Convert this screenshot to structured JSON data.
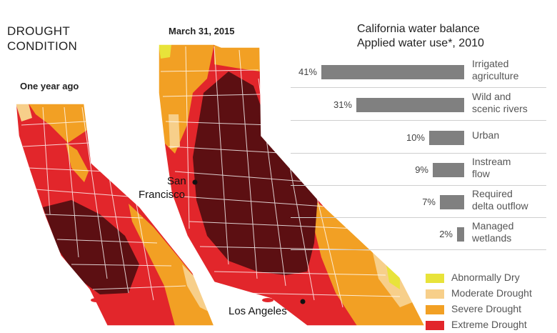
{
  "titles": {
    "drought_line1": "DROUGHT",
    "drought_line2": "CONDITION",
    "left_map": "One year ago",
    "right_map": "March 31, 2015"
  },
  "cities": {
    "sf_line1": "San",
    "sf_line2": "Francisco",
    "la": "Los Angeles"
  },
  "water_panel": {
    "title_line1": "California water balance",
    "title_line2": "Applied water use*, 2010",
    "bars": [
      {
        "pct": "41%",
        "value": 41,
        "label_line1": "Irrigated",
        "label_line2": "agriculture"
      },
      {
        "pct": "31%",
        "value": 31,
        "label_line1": "Wild and",
        "label_line2": "scenic rivers"
      },
      {
        "pct": "10%",
        "value": 10,
        "label_line1": "Urban",
        "label_line2": ""
      },
      {
        "pct": "9%",
        "value": 9,
        "label_line1": "Instream",
        "label_line2": "flow"
      },
      {
        "pct": "7%",
        "value": 7,
        "label_line1": "Required",
        "label_line2": "delta outflow"
      },
      {
        "pct": "2%",
        "value": 2,
        "label_line1": "Managed",
        "label_line2": "wetlands"
      }
    ],
    "bar_color": "#808080"
  },
  "legend": [
    {
      "label": "Abnormally Dry",
      "color": "#e8e33a"
    },
    {
      "label": "Moderate Drought",
      "color": "#f7cf8a"
    },
    {
      "label": "Severe Drought",
      "color": "#f2a024"
    },
    {
      "label": "Extreme Drought",
      "color": "#e2262b"
    }
  ],
  "colors": {
    "exceptional": "#5c0f12",
    "extreme": "#e2262b",
    "severe": "#f2a024",
    "moderate": "#f7cf8a",
    "abnormal": "#e8e33a"
  }
}
